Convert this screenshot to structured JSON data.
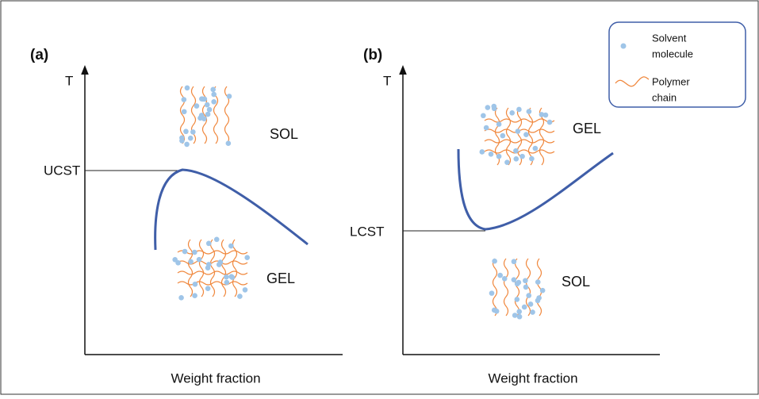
{
  "panels": [
    {
      "label": "(a)",
      "y_axis": "T",
      "x_axis": "Weight fraction",
      "critical": "UCST",
      "upper_phase": "SOL",
      "lower_phase": "GEL"
    },
    {
      "label": "(b)",
      "y_axis": "T",
      "x_axis": "Weight fraction",
      "critical": "LCST",
      "upper_phase": "GEL",
      "lower_phase": "SOL"
    }
  ],
  "legend": {
    "solvent": [
      "Solvent",
      "molecule"
    ],
    "polymer": [
      "Polymer",
      "chain"
    ]
  }
}
